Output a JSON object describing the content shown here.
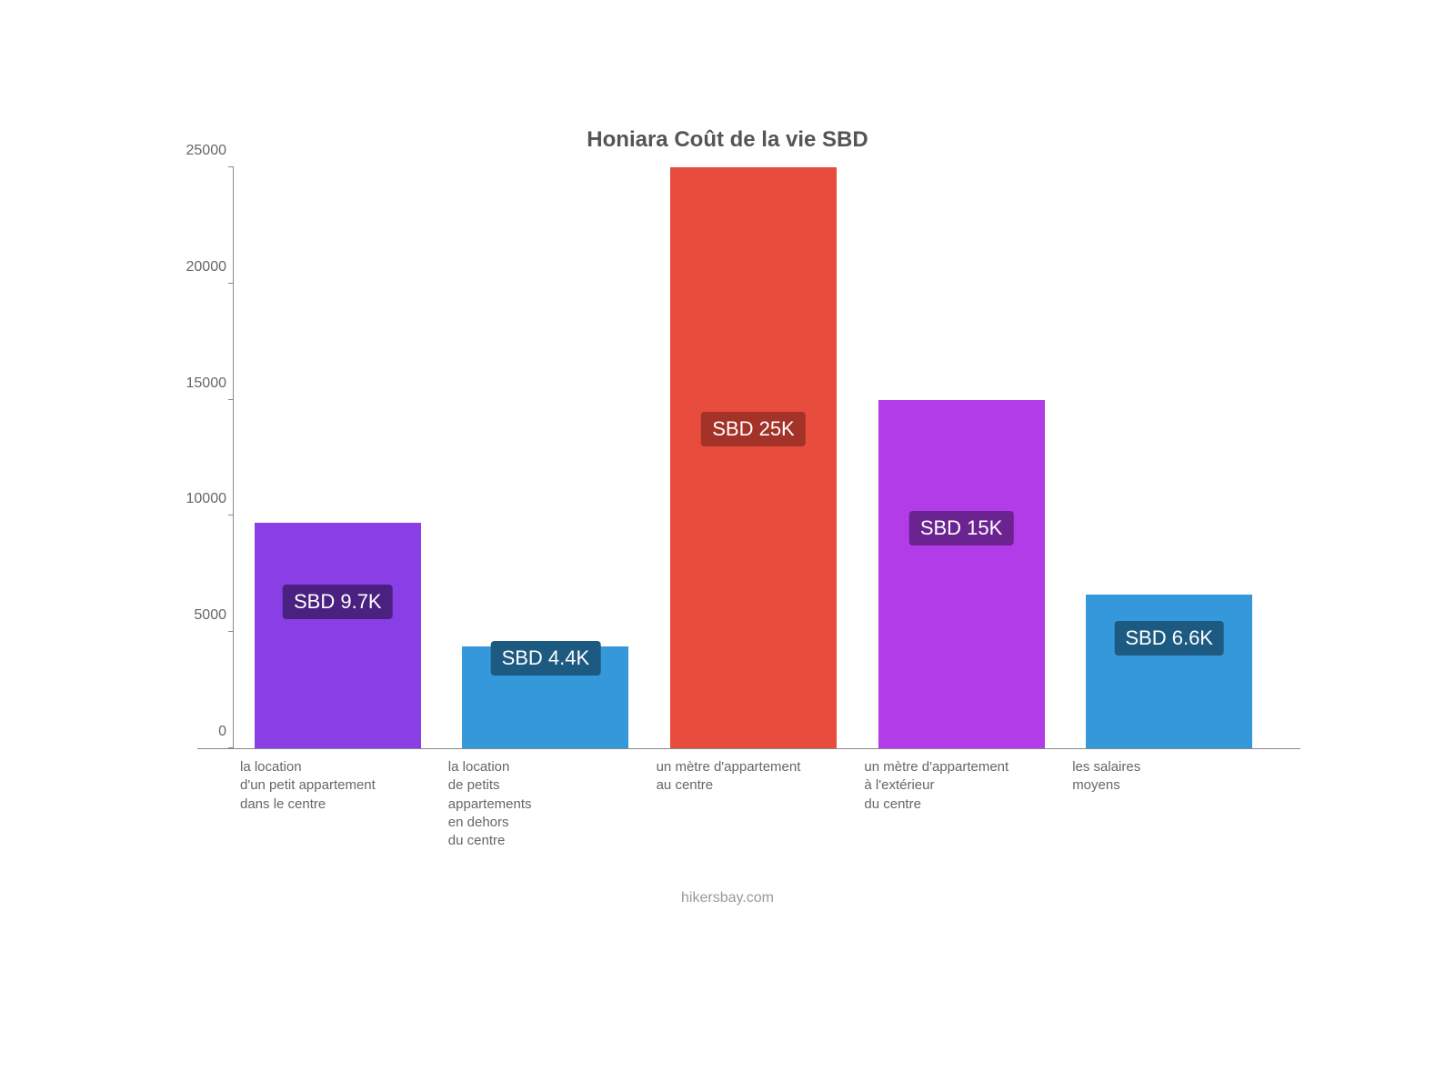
{
  "chart": {
    "type": "bar",
    "title": "Honiara Coût de la vie SBD",
    "title_fontsize": 24,
    "title_color": "#555555",
    "background_color": "#ffffff",
    "axis_color": "#888888",
    "ylim": [
      0,
      25000
    ],
    "yticks": [
      0,
      5000,
      10000,
      15000,
      20000,
      25000
    ],
    "tick_label_color": "#666666",
    "tick_fontsize": 16,
    "xlabel_fontsize": 15,
    "bar_width_ratio": 0.8,
    "badge_fontsize": 22,
    "credit": "hikersbay.com",
    "credit_color": "#999999",
    "credit_fontsize": 16,
    "bars": [
      {
        "category": "la location\nd'un petit appartement\ndans le centre",
        "value": 9700,
        "value_label": "SBD 9.7K",
        "bar_color": "#8a3ee6",
        "badge_bg": "#4a2180",
        "badge_pos": 0.65
      },
      {
        "category": "la location\nde petits\nappartements\nen dehors\ndu centre",
        "value": 4400,
        "value_label": "SBD 4.4K",
        "bar_color": "#3498db",
        "badge_bg": "#1c5a82",
        "badge_pos": 0.88
      },
      {
        "category": "un mètre d'appartement\nau centre",
        "value": 25000,
        "value_label": "SBD 25K",
        "bar_color": "#e74c3c",
        "badge_bg": "#a33228",
        "badge_pos": 0.55
      },
      {
        "category": "un mètre d'appartement\nà l'extérieur\ndu centre",
        "value": 15000,
        "value_label": "SBD 15K",
        "bar_color": "#b13ce8",
        "badge_bg": "#6a2390",
        "badge_pos": 0.63
      },
      {
        "category": "les salaires\nmoyens",
        "value": 6600,
        "value_label": "SBD 6.6K",
        "bar_color": "#3498db",
        "badge_bg": "#1c5a82",
        "badge_pos": 0.72
      }
    ]
  }
}
